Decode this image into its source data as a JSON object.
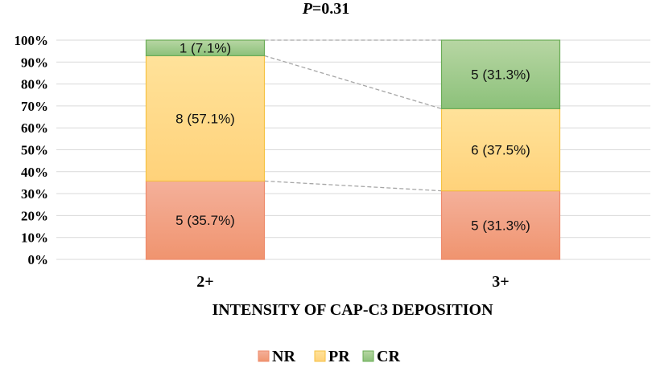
{
  "chart_data": {
    "type": "bar",
    "stacked": true,
    "percent_stacked": true,
    "title_italic_part": "P",
    "title_rest": "=0.31",
    "xlabel": "INTENSITY OF CAP-C3 DEPOSITION",
    "categories": [
      "2+",
      "3+"
    ],
    "ylim": [
      0,
      100
    ],
    "yticks": [
      "0%",
      "10%",
      "20%",
      "30%",
      "40%",
      "50%",
      "60%",
      "70%",
      "80%",
      "90%",
      "100%"
    ],
    "series": [
      {
        "name": "NR",
        "counts": [
          5,
          5
        ],
        "percents": [
          35.7,
          31.3
        ],
        "labels": [
          "5  (35.7%)",
          "5  (31.3%)"
        ],
        "color": "#f4b09a",
        "color_bottom": "#f0946f",
        "border": "#ee8a6a"
      },
      {
        "name": "PR",
        "counts": [
          8,
          6
        ],
        "percents": [
          57.1,
          37.5
        ],
        "labels": [
          "8  (57.1%)",
          "6  (37.5%)"
        ],
        "color": "#ffe29a",
        "color_bottom": "#ffd27a",
        "border": "#f5c242"
      },
      {
        "name": "CR",
        "counts": [
          1,
          5
        ],
        "percents": [
          7.1,
          31.3
        ],
        "labels": [
          "1  (7.1%)",
          "5  (31.3%)"
        ],
        "color": "#b7d6a3",
        "color_bottom": "#8cc17a",
        "border": "#6aac55"
      }
    ],
    "connector_lines": true,
    "legend": "bottom"
  }
}
